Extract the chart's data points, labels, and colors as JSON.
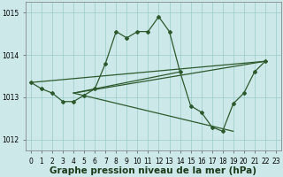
{
  "background_color": "#cce8e8",
  "grid_color": "#99cccc",
  "line_color": "#2d5a2d",
  "xlabel": "Graphe pression niveau de la mer (hPa)",
  "xlabel_fontsize": 7.5,
  "ylim": [
    1011.75,
    1015.25
  ],
  "xlim": [
    -0.5,
    23.5
  ],
  "yticks": [
    1012,
    1013,
    1014,
    1015
  ],
  "xticks": [
    0,
    1,
    2,
    3,
    4,
    5,
    6,
    7,
    8,
    9,
    10,
    11,
    12,
    13,
    14,
    15,
    16,
    17,
    18,
    19,
    20,
    21,
    22,
    23
  ],
  "s1x": [
    0,
    1,
    2,
    3,
    4,
    5,
    6,
    7,
    8,
    9,
    10,
    11,
    12,
    13,
    14,
    15,
    16,
    17,
    18,
    19,
    20,
    21,
    22
  ],
  "s1y": [
    1013.35,
    1013.2,
    1013.1,
    1012.9,
    1012.9,
    1013.05,
    1013.2,
    1013.8,
    1014.55,
    1014.4,
    1014.55,
    1014.55,
    1014.9,
    1014.55,
    1013.6,
    1012.8,
    1012.65,
    1012.3,
    1012.2,
    1012.85,
    1013.1,
    1013.6,
    1013.85
  ],
  "s2x": [
    4,
    22
  ],
  "s2y": [
    1013.1,
    1013.85
  ],
  "s3x": [
    4,
    19
  ],
  "s3y": [
    1013.1,
    1012.2
  ],
  "s4x": [
    4,
    14
  ],
  "s4y": [
    1013.1,
    1013.6
  ],
  "s5x": [
    0,
    22
  ],
  "s5y": [
    1013.35,
    1013.85
  ]
}
